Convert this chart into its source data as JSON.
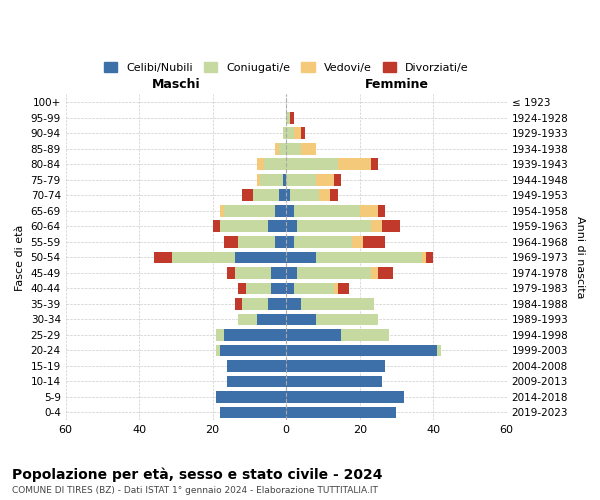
{
  "age_groups": [
    "100+",
    "95-99",
    "90-94",
    "85-89",
    "80-84",
    "75-79",
    "70-74",
    "65-69",
    "60-64",
    "55-59",
    "50-54",
    "45-49",
    "40-44",
    "35-39",
    "30-34",
    "25-29",
    "20-24",
    "15-19",
    "10-14",
    "5-9",
    "0-4"
  ],
  "birth_years": [
    "≤ 1923",
    "1924-1928",
    "1929-1933",
    "1934-1938",
    "1939-1943",
    "1944-1948",
    "1949-1953",
    "1954-1958",
    "1959-1963",
    "1964-1968",
    "1969-1973",
    "1974-1978",
    "1979-1983",
    "1984-1988",
    "1989-1993",
    "1994-1998",
    "1999-2003",
    "2004-2008",
    "2009-2013",
    "2014-2018",
    "2019-2023"
  ],
  "maschi": {
    "celibi": [
      0,
      0,
      0,
      0,
      0,
      1,
      2,
      3,
      5,
      3,
      14,
      4,
      4,
      5,
      8,
      17,
      18,
      16,
      16,
      19,
      18
    ],
    "coniugati": [
      0,
      0,
      1,
      2,
      6,
      6,
      7,
      14,
      13,
      10,
      17,
      10,
      7,
      7,
      5,
      2,
      1,
      0,
      0,
      0,
      0
    ],
    "vedovi": [
      0,
      0,
      0,
      1,
      2,
      1,
      0,
      1,
      0,
      0,
      0,
      0,
      0,
      0,
      0,
      0,
      0,
      0,
      0,
      0,
      0
    ],
    "divorziati": [
      0,
      0,
      0,
      0,
      0,
      0,
      3,
      0,
      2,
      4,
      5,
      2,
      2,
      2,
      0,
      0,
      0,
      0,
      0,
      0,
      0
    ]
  },
  "femmine": {
    "nubili": [
      0,
      0,
      0,
      0,
      0,
      0,
      1,
      2,
      3,
      2,
      8,
      3,
      2,
      4,
      8,
      15,
      41,
      27,
      26,
      32,
      30
    ],
    "coniugate": [
      0,
      1,
      2,
      4,
      14,
      8,
      8,
      18,
      20,
      16,
      29,
      20,
      11,
      20,
      17,
      13,
      1,
      0,
      0,
      0,
      0
    ],
    "vedove": [
      0,
      0,
      2,
      4,
      9,
      5,
      3,
      5,
      3,
      3,
      1,
      2,
      1,
      0,
      0,
      0,
      0,
      0,
      0,
      0,
      0
    ],
    "divorziate": [
      0,
      1,
      1,
      0,
      2,
      2,
      2,
      2,
      5,
      6,
      2,
      4,
      3,
      0,
      0,
      0,
      0,
      0,
      0,
      0,
      0
    ]
  },
  "colors": {
    "celibi": "#3d6fa8",
    "coniugati": "#c5d9a0",
    "vedovi": "#f5c97a",
    "divorziati": "#c0392b"
  },
  "xlim": 60,
  "title": "Popolazione per età, sesso e stato civile - 2024",
  "subtitle": "COMUNE DI TIRES (BZ) - Dati ISTAT 1° gennaio 2024 - Elaborazione TUTTITALIA.IT",
  "ylabel_left": "Fasce di età",
  "ylabel_right": "Anni di nascita",
  "xlabel_maschi": "Maschi",
  "xlabel_femmine": "Femmine",
  "legend_labels": [
    "Celibi/Nubili",
    "Coniugati/e",
    "Vedovi/e",
    "Divorziati/e"
  ],
  "background_color": "#ffffff",
  "grid_color": "#cccccc"
}
